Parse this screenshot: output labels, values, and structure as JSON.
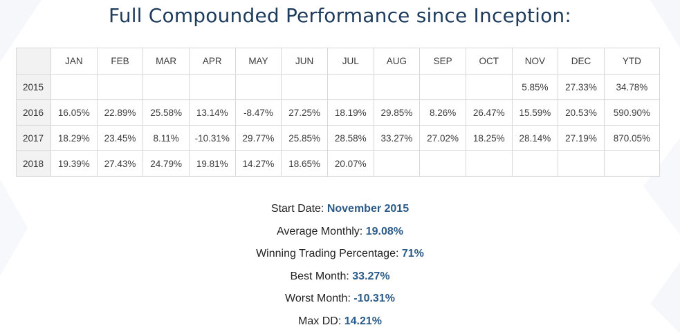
{
  "title": "Full Compounded Performance since Inception:",
  "colors": {
    "title": "#1d3b5c",
    "positive": "#5fa33c",
    "negative": "#e03a3a",
    "stat_value": "#2c5a86"
  },
  "table": {
    "headers": [
      "",
      "JAN",
      "FEB",
      "MAR",
      "APR",
      "MAY",
      "JUN",
      "JUL",
      "AUG",
      "SEP",
      "OCT",
      "NOV",
      "DEC",
      "YTD"
    ],
    "rows": [
      {
        "year": "2015",
        "months": [
          "",
          "",
          "",
          "",
          "",
          "",
          "",
          "",
          "",
          "",
          "5.85%",
          "27.33%"
        ],
        "ytd": "34.78%"
      },
      {
        "year": "2016",
        "months": [
          "16.05%",
          "22.89%",
          "25.58%",
          "13.14%",
          "-8.47%",
          "27.25%",
          "18.19%",
          "29.85%",
          "8.26%",
          "26.47%",
          "15.59%",
          "20.53%"
        ],
        "ytd": "590.90%"
      },
      {
        "year": "2017",
        "months": [
          "18.29%",
          "23.45%",
          "8.11%",
          "-10.31%",
          "29.77%",
          "25.85%",
          "28.58%",
          "33.27%",
          "27.02%",
          "18.25%",
          "28.14%",
          "27.19%"
        ],
        "ytd": "870.05%"
      },
      {
        "year": "2018",
        "months": [
          "19.39%",
          "27.43%",
          "24.79%",
          "19.81%",
          "14.27%",
          "18.65%",
          "20.07%",
          "",
          "",
          "",
          "",
          ""
        ],
        "ytd": ""
      }
    ]
  },
  "stats": [
    {
      "label": "Start Date: ",
      "value": "November 2015"
    },
    {
      "label": "Average Monthly: ",
      "value": "19.08%"
    },
    {
      "label": "Winning Trading Percentage: ",
      "value": "71%"
    },
    {
      "label": "Best Month: ",
      "value": "33.27%"
    },
    {
      "label": "Worst Month: ",
      "value": "-10.31%"
    },
    {
      "label": "Max DD: ",
      "value": "14.21%"
    }
  ]
}
